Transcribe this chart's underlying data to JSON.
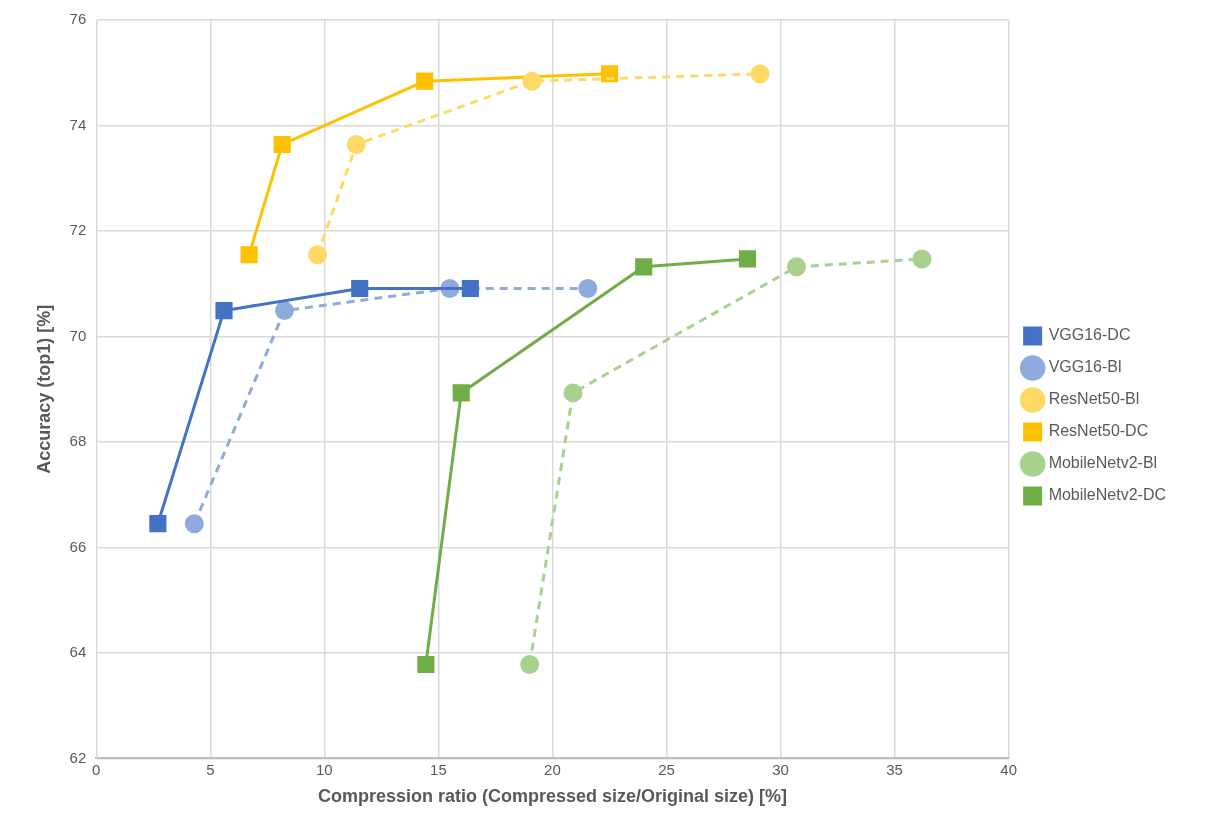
{
  "chart_data": {
    "type": "line",
    "xlabel": "Compression ratio (Compressed size/Original size) [%]",
    "ylabel": "Accuracy (top1) [%]",
    "xlim": [
      0,
      40
    ],
    "xticks": [
      0,
      5,
      10,
      15,
      20,
      25,
      30,
      35,
      40
    ],
    "ylim": [
      62,
      76
    ],
    "yticks": [
      62,
      64,
      66,
      68,
      70,
      72,
      74,
      76
    ],
    "grid": true,
    "legend": "right",
    "series": [
      {
        "name": "VGG16-DC",
        "color": "#4472c4",
        "marker": "square",
        "line_style": "solid",
        "x": [
          2.7,
          5.6,
          11.55,
          16.4
        ],
        "values": [
          66.45,
          70.49,
          70.91,
          70.91
        ]
      },
      {
        "name": "VGG16-Bl",
        "color": "#8faadc",
        "marker": "circle",
        "line_style": "dashed",
        "x": [
          4.3,
          8.25,
          15.5,
          21.55
        ],
        "values": [
          66.45,
          70.49,
          70.91,
          70.91
        ]
      },
      {
        "name": "ResNet50-Bl",
        "color": "#ffd966",
        "marker": "circle",
        "line_style": "dashed",
        "x": [
          9.7,
          11.4,
          19.1,
          29.1
        ],
        "values": [
          71.55,
          73.64,
          74.84,
          74.98
        ]
      },
      {
        "name": "ResNet50-DC",
        "color": "#ffc000",
        "marker": "square",
        "line_style": "solid",
        "x": [
          6.7,
          8.15,
          14.4,
          22.5
        ],
        "values": [
          71.55,
          73.64,
          74.84,
          74.98
        ]
      },
      {
        "name": "MobileNetv2-Bl",
        "color": "#a9d18e",
        "marker": "circle",
        "line_style": "dashed",
        "x": [
          19.0,
          20.9,
          30.7,
          36.2
        ],
        "values": [
          63.78,
          68.93,
          71.32,
          71.47
        ]
      },
      {
        "name": "MobileNetv2-DC",
        "color": "#70ad47",
        "marker": "square",
        "line_style": "solid",
        "x": [
          14.45,
          16.0,
          24.0,
          28.55
        ],
        "values": [
          63.78,
          68.93,
          71.32,
          71.47
        ]
      }
    ]
  }
}
